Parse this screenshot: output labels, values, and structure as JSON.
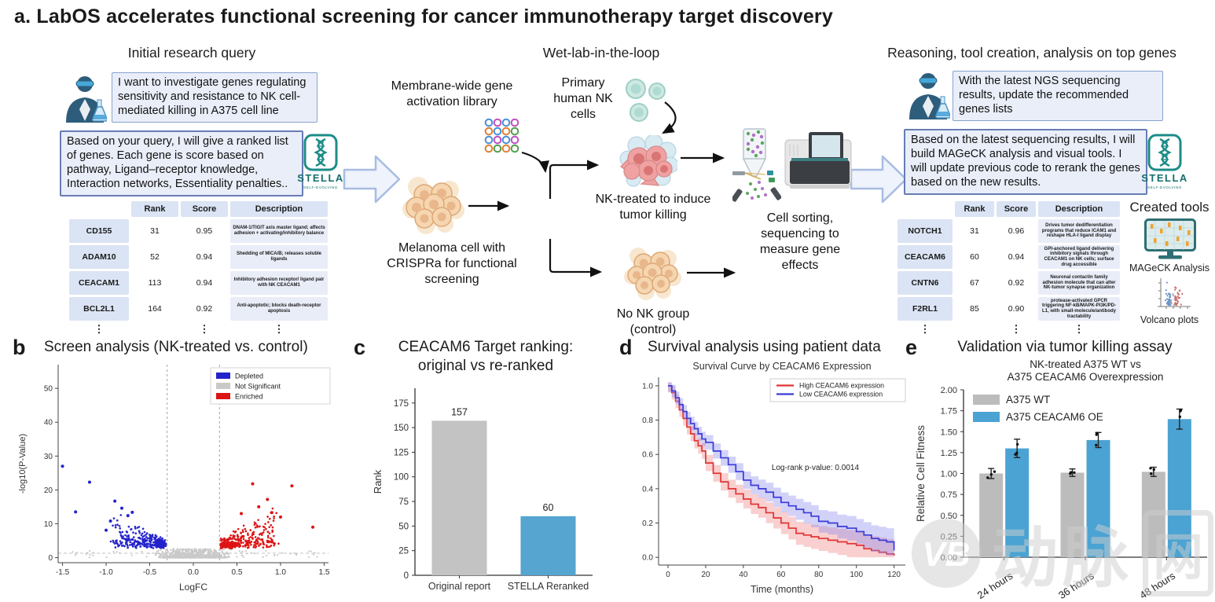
{
  "title": "a. LabOS accelerates functional screening for cancer immunotherapy target discovery",
  "ellipsis": "⋮",
  "stella": {
    "name": "STELLA",
    "tagline": "SELF-EVOLVING"
  },
  "colors": {
    "stella_teal": "#1d8c88",
    "chat_bg": "#e9eef9",
    "chat_border": "#687cb5",
    "depleted_blue": "#2323cc",
    "enriched_red": "#dd1414",
    "not_significant_gray": "#c9c9c9",
    "bar_gray": "#c3c3c3",
    "bar_blue": "#55a5d0",
    "survival_high_red": "#e03434",
    "survival_low_blue": "#3a3ad8"
  },
  "sections": {
    "initial_query": {
      "header": "Initial research query",
      "user_query": "I want to investigate genes regulating sensitivity and resistance to NK cell-mediated killing in A375 cell line",
      "agent_response": "Based on your query, I will give a ranked list of genes. Each gene is score based on pathway, Ligand–receptor knowledge, Interaction networks, Essentiality penalties..",
      "table": {
        "headers": [
          "",
          "Rank",
          "Score",
          "Description"
        ],
        "rows": [
          {
            "gene": "CD155",
            "rank": "31",
            "score": "0.95",
            "desc": "DNAM-1/TIGIT axis master ligand; affects adhesion + activating/inhibitory balance"
          },
          {
            "gene": "ADAM10",
            "rank": "52",
            "score": "0.94",
            "desc": "Shedding of MICA/B; releases soluble ligands"
          },
          {
            "gene": "CEACAM1",
            "rank": "113",
            "score": "0.94",
            "desc": "Inhibitory adhesion receptor/ ligand pair with NK CEACAM1"
          },
          {
            "gene": "BCL2L1",
            "rank": "164",
            "score": "0.92",
            "desc": "Anti-apoptotic; blocks death-receptor apoptosis"
          }
        ]
      }
    },
    "wetlab": {
      "header": "Wet-lab-in-the-loop",
      "labels": {
        "library": "Membrane-wide gene activation library",
        "melanoma": "Melanoma cell with CRISPRa for functional screening",
        "nk_cells": "Primary human NK cells",
        "nk_treated": "NK-treated to induce tumor killing",
        "control": "No NK group (control)",
        "sorting": "Cell sorting, sequencing to measure gene effects"
      }
    },
    "reasoning": {
      "header": "Reasoning, tool creation, analysis on top genes",
      "user_query": "With the latest NGS sequencing results, update the recommended genes lists",
      "agent_response": "Based on the latest sequencing results, I will build MAGeCK analysis and visual tools. I will update previous code to rerank the genes based on the new results.",
      "table": {
        "headers": [
          "",
          "Rank",
          "Score",
          "Description"
        ],
        "rows": [
          {
            "gene": "NOTCH1",
            "rank": "31",
            "score": "0.96",
            "desc": "Drives tumor dedifferentiation programs that reduce ICAM1 and reshape HLA-I ligand display"
          },
          {
            "gene": "CEACAM6",
            "rank": "60",
            "score": "0.94",
            "desc": "GPI-anchored ligand delivering inhibitory signals through CEACAM1 on NK cells; surface drug accessible"
          },
          {
            "gene": "CNTN6",
            "rank": "67",
            "score": "0.92",
            "desc": "Neuronal contactin family adhesion molecule that can alter NK-tumor synapse organization"
          },
          {
            "gene": "F2RL1",
            "rank": "85",
            "score": "0.90",
            "desc": "protease-activated GPCR triggering NF-kB/MAPK-PI3K/PD-L1, with small-molecule/antibody tractability"
          }
        ]
      },
      "created_tools": {
        "header": "Created tools",
        "tool1": "MAGeCK Analysis",
        "tool2": "Volcano plots"
      }
    }
  },
  "panels": {
    "b": {
      "label": "b",
      "title": "Screen analysis (NK-treated vs. control)"
    },
    "c": {
      "label": "c",
      "title": "CEACAM6 Target ranking:\noriginal vs re-ranked"
    },
    "d": {
      "label": "d",
      "title": "Survival analysis using patient data"
    },
    "e": {
      "label": "e",
      "title": "Validation via tumor killing assay"
    }
  },
  "watermark": {
    "logo_text": "VB",
    "text_part1": "动脉",
    "text_part2": "网"
  },
  "chart_data": [
    {
      "id": "volcano",
      "type": "scatter",
      "title": "Screen analysis (NK-treated vs. control)",
      "xlabel": "LogFC",
      "ylabel": "-log10(P-Value)",
      "xlim": [
        -1.55,
        1.55
      ],
      "ylim": [
        -1.5,
        57
      ],
      "xticks": [
        -1.5,
        -1.0,
        -0.5,
        0.0,
        0.5,
        1.0,
        1.5
      ],
      "yticks": [
        0,
        10,
        20,
        30,
        40,
        50
      ],
      "legend": [
        {
          "label": "Depleted",
          "color": "#2323cc"
        },
        {
          "label": "Not Significant",
          "color": "#c9c9c9"
        },
        {
          "label": "Enriched",
          "color": "#dd1414"
        }
      ],
      "threshold_x": [
        -0.3,
        0.3
      ],
      "threshold_y": 1.3,
      "clusters": [
        {
          "name": "depleted",
          "color": "#2323cc",
          "n": 330,
          "x_range": [
            -1.05,
            -0.31
          ],
          "y_range": [
            2.7,
            17
          ]
        },
        {
          "name": "enriched",
          "color": "#dd1414",
          "n": 340,
          "x_range": [
            0.31,
            1.05
          ],
          "y_range": [
            2.7,
            22
          ]
        },
        {
          "name": "not_significant",
          "color": "#c9c9c9",
          "n": 700,
          "x_range": [
            -0.5,
            0.5
          ],
          "y_range": [
            0,
            2.8
          ]
        }
      ],
      "outliers": [
        {
          "x": -1.5,
          "y": 27.0,
          "color": "#2323cc"
        },
        {
          "x": -1.19,
          "y": 22.3,
          "color": "#2323cc"
        },
        {
          "x": -1.35,
          "y": 13.5,
          "color": "#2323cc"
        },
        {
          "x": -0.9,
          "y": 16.7,
          "color": "#2323cc"
        },
        {
          "x": -0.82,
          "y": 14.6,
          "color": "#2323cc"
        },
        {
          "x": -0.7,
          "y": 13.4,
          "color": "#2323cc"
        },
        {
          "x": -0.75,
          "y": 12.4,
          "color": "#2323cc"
        },
        {
          "x": -0.95,
          "y": 10.8,
          "color": "#2323cc"
        },
        {
          "x": -1.0,
          "y": 8.1,
          "color": "#2323cc"
        },
        {
          "x": 0.68,
          "y": 21.8,
          "color": "#dd1414"
        },
        {
          "x": 1.13,
          "y": 21.2,
          "color": "#dd1414"
        },
        {
          "x": 0.85,
          "y": 17.2,
          "color": "#dd1414"
        },
        {
          "x": 0.75,
          "y": 15.0,
          "color": "#dd1414"
        },
        {
          "x": 0.9,
          "y": 13.3,
          "color": "#dd1414"
        },
        {
          "x": 1.0,
          "y": 12.0,
          "color": "#dd1414"
        },
        {
          "x": 1.37,
          "y": 9.0,
          "color": "#dd1414"
        },
        {
          "x": 0.55,
          "y": 13.0,
          "color": "#dd1414"
        }
      ]
    },
    {
      "id": "rank_bar",
      "type": "bar",
      "categories": [
        "Original report",
        "STELLA Reranked"
      ],
      "values": [
        157,
        60
      ],
      "bar_labels": [
        "157",
        "60"
      ],
      "colors": [
        "#c3c3c3",
        "#55a5d0"
      ],
      "ylabel": "Rank",
      "ylim": [
        0,
        190
      ],
      "yticks": [
        0,
        25,
        50,
        75,
        100,
        125,
        150,
        175
      ]
    },
    {
      "id": "survival",
      "type": "line",
      "title": "Survival Curve by CEACAM6 Expression",
      "xlabel": "Time (months)",
      "annotation": "Log-rank p-value: 0.0014",
      "xlim": [
        -5,
        126
      ],
      "ylim": [
        -0.045,
        1.05
      ],
      "xticks": [
        0,
        20,
        40,
        60,
        80,
        100,
        120
      ],
      "yticks": [
        0.0,
        0.2,
        0.4,
        0.6,
        0.8,
        1.0
      ],
      "x": [
        0,
        2,
        4,
        6,
        8,
        10,
        12,
        14,
        16,
        18,
        20,
        24,
        28,
        32,
        36,
        40,
        44,
        48,
        52,
        56,
        60,
        64,
        68,
        72,
        76,
        80,
        85,
        90,
        95,
        100,
        104,
        108,
        112,
        116,
        120
      ],
      "series": [
        {
          "name": "High CEACAM6 expression",
          "color": "#e03434",
          "band": "#f08080",
          "band_w": 0.055,
          "y": [
            1.0,
            0.96,
            0.91,
            0.86,
            0.81,
            0.76,
            0.72,
            0.68,
            0.65,
            0.62,
            0.55,
            0.49,
            0.44,
            0.4,
            0.37,
            0.34,
            0.31,
            0.29,
            0.26,
            0.23,
            0.2,
            0.17,
            0.14,
            0.13,
            0.12,
            0.11,
            0.1,
            0.09,
            0.08,
            0.07,
            0.05,
            0.04,
            0.03,
            0.02,
            0.01
          ]
        },
        {
          "name": "Low CEACAM6 expression",
          "color": "#3a3ad8",
          "band": "#8a8aee",
          "band_w": 0.05,
          "y": [
            1.0,
            0.97,
            0.93,
            0.89,
            0.85,
            0.81,
            0.78,
            0.75,
            0.72,
            0.69,
            0.67,
            0.62,
            0.58,
            0.54,
            0.5,
            0.45,
            0.42,
            0.4,
            0.38,
            0.35,
            0.32,
            0.3,
            0.28,
            0.26,
            0.24,
            0.21,
            0.2,
            0.18,
            0.17,
            0.15,
            0.13,
            0.11,
            0.1,
            0.09,
            0.04
          ]
        }
      ]
    },
    {
      "id": "killing_assay",
      "type": "grouped_bar",
      "title": "NK-treated A375 WT vs\nA375 CEACAM6 Overexpression",
      "ylabel": "Relative Cell Fitness",
      "ylim": [
        0,
        2.0
      ],
      "yticks": [
        0.0,
        0.25,
        0.5,
        0.75,
        1.0,
        1.25,
        1.5,
        1.75,
        2.0
      ],
      "categories": [
        "24 hours",
        "36 hours",
        "48 hours"
      ],
      "series": [
        {
          "name": "A375 WT",
          "color": "#bcbcbc",
          "values": [
            1.0,
            1.01,
            1.02
          ],
          "errors": [
            0.06,
            0.045,
            0.055
          ]
        },
        {
          "name": "A375 CEACAM6 OE",
          "color": "#4ba3d3",
          "values": [
            1.3,
            1.4,
            1.65
          ],
          "errors": [
            0.11,
            0.09,
            0.12
          ]
        }
      ]
    }
  ]
}
